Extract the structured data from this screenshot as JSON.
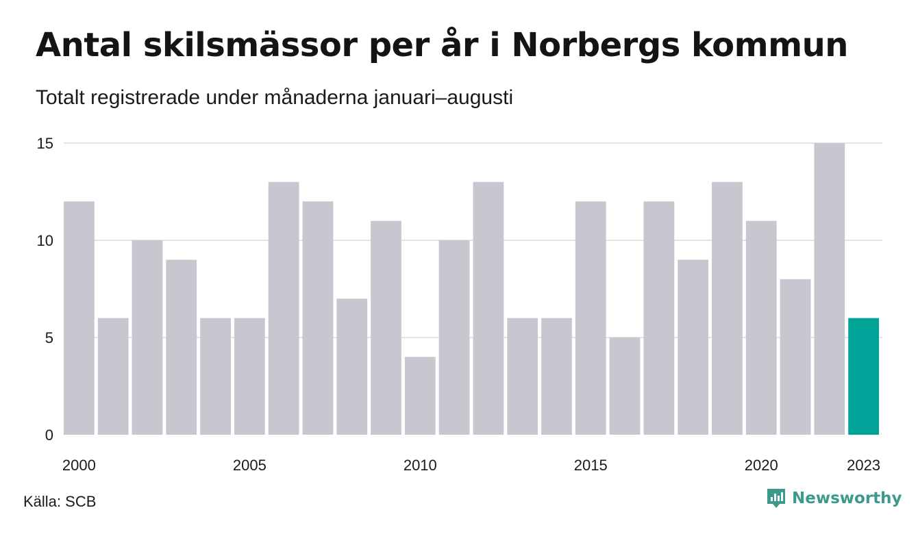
{
  "header": {
    "title": "Antal skilsmässor per år i Norbergs kommun",
    "subtitle": "Totalt registrerade under månaderna januari–augusti"
  },
  "footer": {
    "source": "Källa: SCB",
    "brand": "Newsworthy"
  },
  "colors": {
    "bar": "#c8c7d0",
    "highlight": "#00a398",
    "grid": "#e3e3e3",
    "text": "#1a1a1a",
    "brand": "#3a9a8b"
  },
  "chart_data": {
    "type": "bar",
    "categories": [
      "2000",
      "2001",
      "2002",
      "2003",
      "2004",
      "2005",
      "2006",
      "2007",
      "2008",
      "2009",
      "2010",
      "2011",
      "2012",
      "2013",
      "2014",
      "2015",
      "2016",
      "2017",
      "2018",
      "2019",
      "2020",
      "2021",
      "2022",
      "2023"
    ],
    "values": [
      12,
      6,
      10,
      9,
      6,
      6,
      13,
      12,
      7,
      11,
      4,
      10,
      13,
      6,
      6,
      12,
      5,
      12,
      9,
      13,
      11,
      8,
      15,
      6
    ],
    "highlight_index": 23,
    "x_tick_labels": [
      "2000",
      "2005",
      "2010",
      "2015",
      "2020",
      "2023"
    ],
    "y_ticks": [
      0,
      5,
      10,
      15
    ],
    "ylim": [
      0,
      15
    ],
    "grid": true,
    "xlabel": "",
    "ylabel": ""
  }
}
